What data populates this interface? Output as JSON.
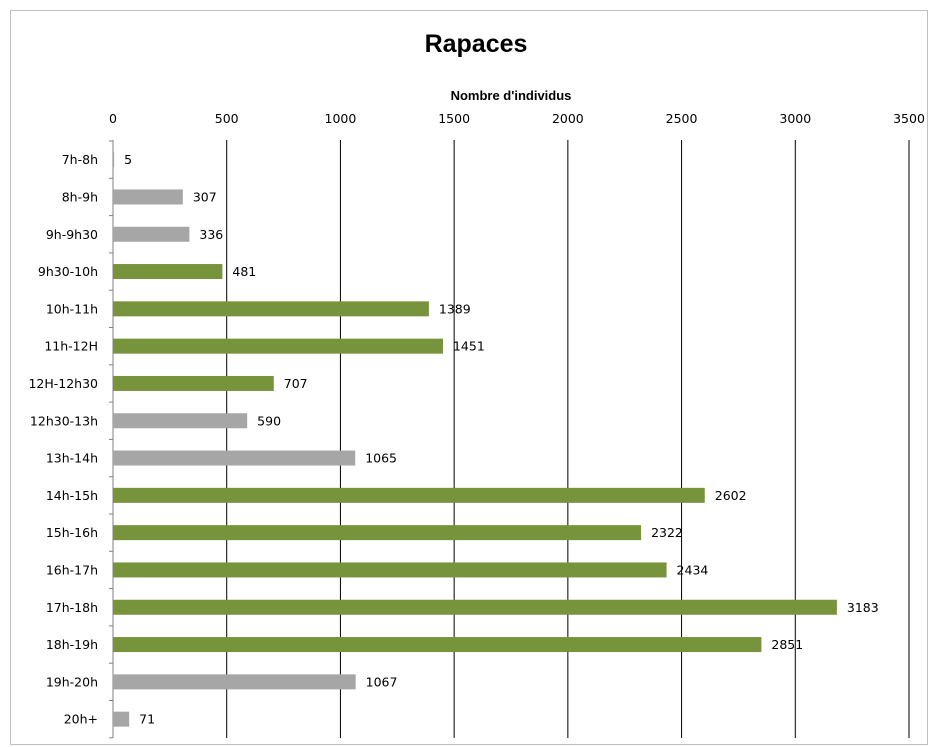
{
  "chart_data": {
    "type": "bar",
    "orientation": "horizontal",
    "title": "Rapaces",
    "xlabel": "Nombre d'individus",
    "ylabel": "",
    "xlim": [
      0,
      3500
    ],
    "ticks": [
      0,
      500,
      1000,
      1500,
      2000,
      2500,
      3000,
      3500
    ],
    "tick_labels": [
      "0",
      "500",
      "1000",
      "1500",
      "2000",
      "2500",
      "3000",
      "3500"
    ],
    "grid": true,
    "legend": "none",
    "categories": [
      "7h-8h",
      "8h-9h",
      "9h-9h30",
      "9h30-10h",
      "10h-11h",
      "11h-12H",
      "12H-12h30",
      "12h30-13h",
      "13h-14h",
      "14h-15h",
      "15h-16h",
      "16h-17h",
      "17h-18h",
      "18h-19h",
      "19h-20h",
      "20h+"
    ],
    "values": [
      5,
      307,
      336,
      481,
      1389,
      1451,
      707,
      590,
      1065,
      2602,
      2322,
      2434,
      3183,
      2851,
      1067,
      71
    ],
    "data_labels": [
      "5",
      "307",
      "336",
      "481",
      "1389",
      "1451",
      "707",
      "590",
      "1065",
      "2602",
      "2322",
      "2434",
      "3183",
      "2851",
      "1067",
      "71"
    ],
    "colors": {
      "green": "#77933c",
      "gray": "#a6a6a6",
      "gridline": "#000000",
      "frame": "#bfbfbf"
    },
    "bar_colors": [
      "gray",
      "gray",
      "gray",
      "green",
      "green",
      "green",
      "green",
      "gray",
      "gray",
      "green",
      "green",
      "green",
      "green",
      "green",
      "gray",
      "gray"
    ]
  }
}
